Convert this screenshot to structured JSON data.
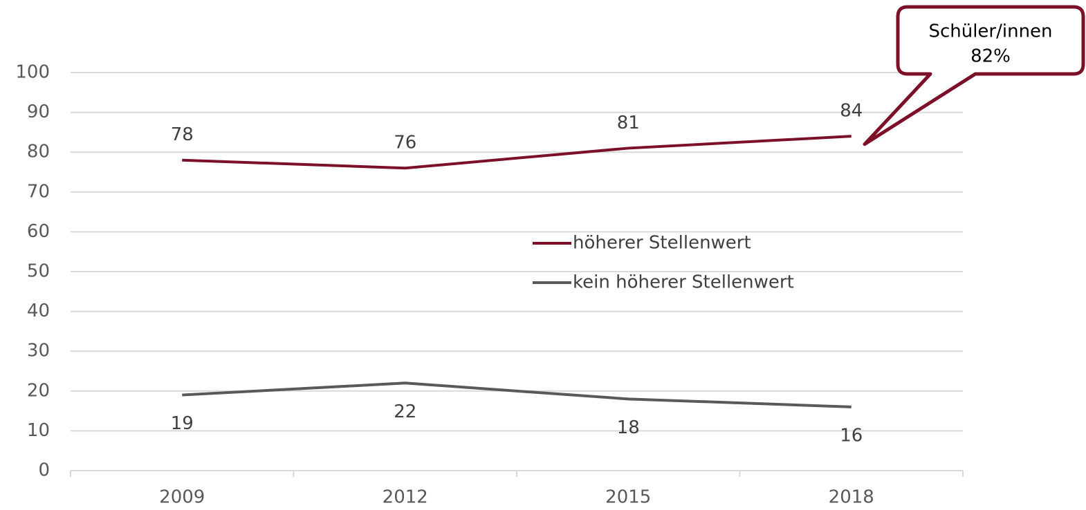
{
  "chart_data": {
    "type": "line",
    "categories": [
      "2009",
      "2012",
      "2015",
      "2018"
    ],
    "series": [
      {
        "name": "höherer Stellenwert",
        "color": "#7b1028",
        "values": [
          78,
          76,
          81,
          84
        ]
      },
      {
        "name": "kein höherer Stellenwert",
        "color": "#595959",
        "values": [
          19,
          22,
          18,
          16
        ]
      }
    ],
    "ylim": [
      0,
      100
    ],
    "yticks": [
      0,
      10,
      20,
      30,
      40,
      50,
      60,
      70,
      80,
      90,
      100
    ],
    "grid": true,
    "legend": "center",
    "annotation": {
      "label": "Schüler/innen",
      "value": 82,
      "value_label": "82%"
    }
  }
}
